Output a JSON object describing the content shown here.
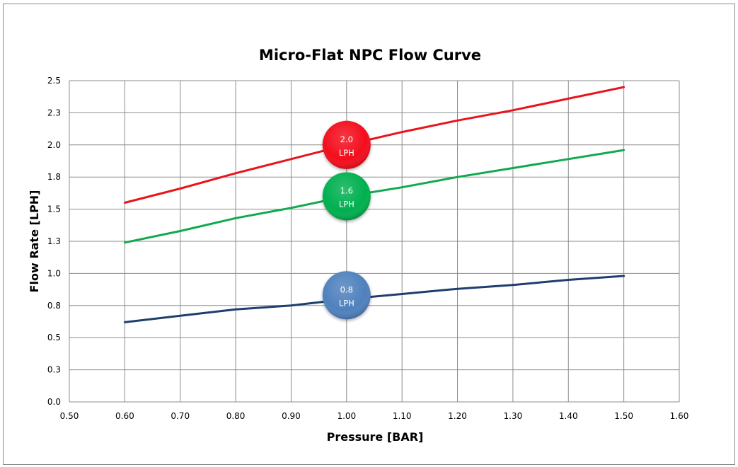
{
  "chart_data": {
    "type": "line",
    "title": "Micro-Flat NPC Flow Curve",
    "xlabel": "Pressure [BAR]",
    "ylabel": "Flow Rate [LPH]",
    "xlim": [
      0.5,
      1.6
    ],
    "ylim": [
      0.0,
      2.5
    ],
    "x_ticks": [
      0.5,
      0.6,
      0.7,
      0.8,
      0.9,
      1.0,
      1.1,
      1.2,
      1.3,
      1.4,
      1.5,
      1.6
    ],
    "x_tick_labels": [
      "0.50",
      "0.60",
      "0.70",
      "0.80",
      "0.90",
      "1.00",
      "1.10",
      "1.20",
      "1.30",
      "1.40",
      "1.50",
      "1.60"
    ],
    "y_ticks": [
      0.0,
      0.25,
      0.5,
      0.75,
      1.0,
      1.25,
      1.5,
      1.75,
      2.0,
      2.25,
      2.5
    ],
    "y_tick_labels": [
      "0.0",
      "0.3",
      "0.5",
      "0.8",
      "1.0",
      "1.3",
      "1.5",
      "1.8",
      "2.0",
      "2.3",
      "2.5"
    ],
    "grid": true,
    "legend": "none",
    "x": [
      0.6,
      0.7,
      0.8,
      0.9,
      1.0,
      1.1,
      1.2,
      1.3,
      1.4,
      1.5
    ],
    "series": [
      {
        "name": "2.0 LPH",
        "color": "#e8141b",
        "values": [
          1.55,
          1.66,
          1.78,
          1.89,
          2.0,
          2.1,
          2.19,
          2.27,
          2.36,
          2.45
        ],
        "badge": {
          "line1": "2.0",
          "line2": "LPH",
          "x": 1.0,
          "y": 2.0,
          "color": "#f40d1b"
        }
      },
      {
        "name": "1.6 LPH",
        "color": "#10a94f",
        "values": [
          1.24,
          1.33,
          1.43,
          1.51,
          1.6,
          1.67,
          1.75,
          1.82,
          1.89,
          1.96
        ],
        "badge": {
          "line1": "1.6",
          "line2": "LPH",
          "x": 1.0,
          "y": 1.6,
          "color": "#00b050"
        }
      },
      {
        "name": "0.8 LPH",
        "color": "#1f3d6e",
        "values": [
          0.62,
          0.67,
          0.72,
          0.75,
          0.8,
          0.84,
          0.88,
          0.91,
          0.95,
          0.98
        ],
        "badge": {
          "line1": "0.8",
          "line2": "LPH",
          "x": 1.0,
          "y": 0.83,
          "color": "#4f81bd"
        }
      }
    ]
  }
}
